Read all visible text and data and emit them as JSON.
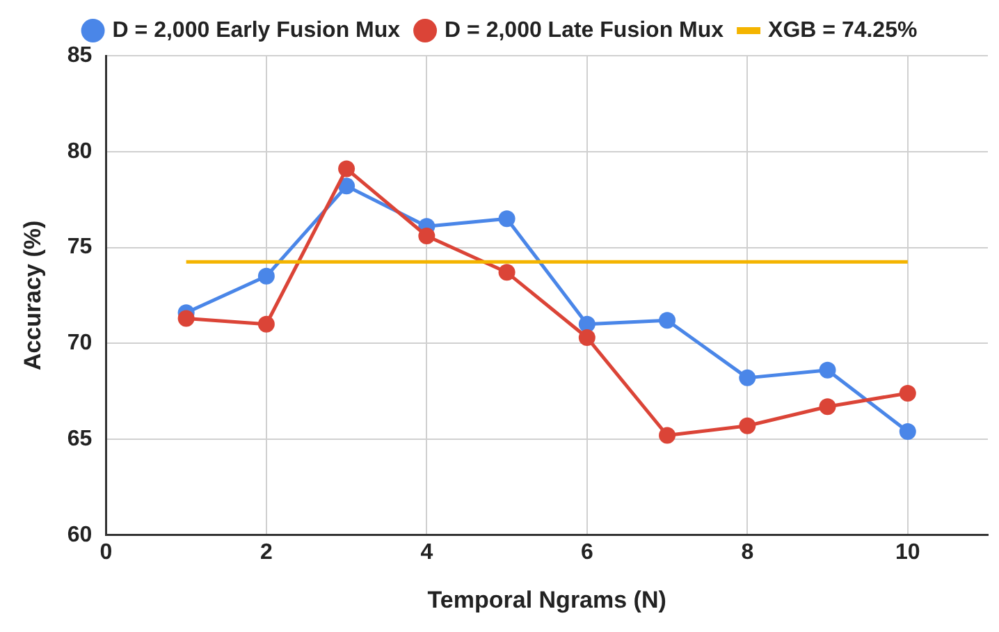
{
  "chart_data": {
    "type": "line",
    "xlabel": "Temporal Ngrams (N)",
    "ylabel": "Accuracy (%)",
    "x": [
      1,
      2,
      3,
      4,
      5,
      6,
      7,
      8,
      9,
      10
    ],
    "series": [
      {
        "name": "D = 2,000 Early Fusion Mux",
        "color": "#4a86e8",
        "values": [
          71.6,
          73.5,
          78.2,
          76.1,
          76.5,
          71.0,
          71.2,
          68.2,
          68.6,
          65.4
        ]
      },
      {
        "name": "D = 2,000 Late Fusion Mux",
        "color": "#db4437",
        "values": [
          71.3,
          71.0,
          79.1,
          75.6,
          73.7,
          70.3,
          65.2,
          65.7,
          66.7,
          67.4
        ]
      },
      {
        "name": "XGB = 74.25%",
        "color": "#f4b400",
        "marker": "none",
        "x": [
          1,
          10
        ],
        "values": [
          74.25,
          74.25
        ]
      }
    ],
    "xlim": [
      0,
      11
    ],
    "xticks": [
      0,
      2,
      4,
      6,
      8,
      10
    ],
    "ylim": [
      60,
      85
    ],
    "yticks": [
      60,
      65,
      70,
      75,
      80,
      85
    ],
    "grid": true,
    "legend": "top",
    "marker": "circle",
    "line_style": "solid"
  }
}
